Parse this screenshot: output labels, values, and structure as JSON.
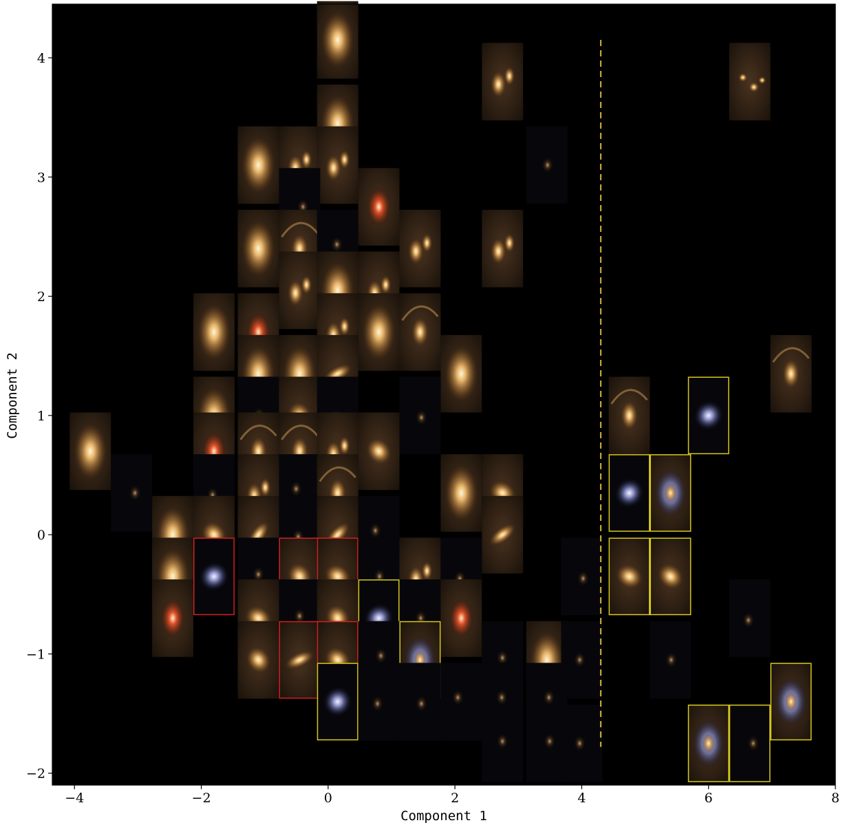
{
  "chart_data": {
    "type": "scatter",
    "xlabel": "Component 1",
    "ylabel": "Component 2",
    "xlim": [
      -4.35,
      8.0
    ],
    "ylim": [
      -2.1,
      4.45
    ],
    "xticks": [
      -4,
      -2,
      0,
      2,
      4,
      6,
      8
    ],
    "yticks": [
      -2,
      -1,
      0,
      1,
      2,
      3,
      4
    ],
    "xtick_labels": [
      "−4",
      "−2",
      "0",
      "2",
      "4",
      "6",
      "8"
    ],
    "ytick_labels": [
      "−2",
      "−1",
      "0",
      "1",
      "2",
      "3",
      "4"
    ],
    "grid": false,
    "background": "#000000",
    "cell_size": 0.65,
    "threshold_line": {
      "x": 4.3,
      "y_range": [
        -1.78,
        4.15
      ],
      "style": "dashed",
      "color": "#c8a53a"
    },
    "highlight_colors": {
      "red": "#d02020",
      "yellow": "#d8c81e",
      "none": ""
    },
    "thumbnails": [
      {
        "x": 0.15,
        "y": 4.15,
        "kind": "elliptical",
        "highlight": "none"
      },
      {
        "x": 2.75,
        "y": 3.8,
        "kind": "pair",
        "highlight": "none"
      },
      {
        "x": 6.65,
        "y": 3.8,
        "kind": "group",
        "highlight": "none"
      },
      {
        "x": 0.15,
        "y": 3.45,
        "kind": "elliptical",
        "highlight": "none"
      },
      {
        "x": -1.1,
        "y": 3.1,
        "kind": "elliptical",
        "highlight": "none"
      },
      {
        "x": -0.45,
        "y": 3.1,
        "kind": "pair",
        "highlight": "none"
      },
      {
        "x": 0.15,
        "y": 3.1,
        "kind": "pair",
        "highlight": "none"
      },
      {
        "x": 3.45,
        "y": 3.1,
        "kind": "faint",
        "highlight": "none"
      },
      {
        "x": -0.45,
        "y": 2.75,
        "kind": "faint",
        "highlight": "none"
      },
      {
        "x": 0.8,
        "y": 2.75,
        "kind": "red",
        "highlight": "none"
      },
      {
        "x": -1.1,
        "y": 2.4,
        "kind": "elliptical",
        "highlight": "none"
      },
      {
        "x": -0.45,
        "y": 2.4,
        "kind": "arc",
        "highlight": "none"
      },
      {
        "x": 0.15,
        "y": 2.4,
        "kind": "faint",
        "highlight": "none"
      },
      {
        "x": 1.45,
        "y": 2.4,
        "kind": "pair",
        "highlight": "none"
      },
      {
        "x": 2.75,
        "y": 2.4,
        "kind": "pair",
        "highlight": "none"
      },
      {
        "x": -0.45,
        "y": 2.05,
        "kind": "pair",
        "highlight": "none"
      },
      {
        "x": 0.15,
        "y": 2.05,
        "kind": "elliptical",
        "highlight": "none"
      },
      {
        "x": 0.8,
        "y": 2.05,
        "kind": "pair",
        "highlight": "none"
      },
      {
        "x": -1.8,
        "y": 1.7,
        "kind": "elliptical",
        "highlight": "none"
      },
      {
        "x": -1.1,
        "y": 1.7,
        "kind": "red",
        "highlight": "none"
      },
      {
        "x": 0.15,
        "y": 1.7,
        "kind": "pair",
        "highlight": "none"
      },
      {
        "x": 0.8,
        "y": 1.7,
        "kind": "elliptical",
        "highlight": "none"
      },
      {
        "x": 1.45,
        "y": 1.7,
        "kind": "arc",
        "highlight": "none"
      },
      {
        "x": -1.1,
        "y": 1.35,
        "kind": "elliptical",
        "highlight": "none"
      },
      {
        "x": -0.45,
        "y": 1.35,
        "kind": "elliptical",
        "highlight": "none"
      },
      {
        "x": 0.15,
        "y": 1.35,
        "kind": "edgeon",
        "highlight": "none"
      },
      {
        "x": 2.1,
        "y": 1.35,
        "kind": "elliptical",
        "highlight": "none"
      },
      {
        "x": 7.3,
        "y": 1.35,
        "kind": "arc",
        "highlight": "none"
      },
      {
        "x": -1.8,
        "y": 1.0,
        "kind": "elliptical",
        "highlight": "none"
      },
      {
        "x": -1.1,
        "y": 1.0,
        "kind": "faint",
        "highlight": "none"
      },
      {
        "x": -0.45,
        "y": 1.0,
        "kind": "disk",
        "highlight": "none"
      },
      {
        "x": 0.15,
        "y": 1.0,
        "kind": "faint",
        "highlight": "none"
      },
      {
        "x": 1.45,
        "y": 1.0,
        "kind": "faint",
        "highlight": "none"
      },
      {
        "x": 4.75,
        "y": 1.0,
        "kind": "arc",
        "highlight": "none"
      },
      {
        "x": 6.0,
        "y": 1.0,
        "kind": "bluespiral",
        "highlight": "yellow"
      },
      {
        "x": -3.75,
        "y": 0.7,
        "kind": "elliptical",
        "highlight": "none"
      },
      {
        "x": -1.8,
        "y": 0.7,
        "kind": "red",
        "highlight": "none"
      },
      {
        "x": -1.1,
        "y": 0.7,
        "kind": "arc",
        "highlight": "none"
      },
      {
        "x": -0.45,
        "y": 0.7,
        "kind": "arc",
        "highlight": "none"
      },
      {
        "x": 0.15,
        "y": 0.7,
        "kind": "pair",
        "highlight": "none"
      },
      {
        "x": 0.8,
        "y": 0.7,
        "kind": "disk",
        "highlight": "none"
      },
      {
        "x": -3.1,
        "y": 0.35,
        "kind": "faint",
        "highlight": "none"
      },
      {
        "x": -1.8,
        "y": 0.35,
        "kind": "faint",
        "highlight": "none"
      },
      {
        "x": -1.1,
        "y": 0.35,
        "kind": "pair",
        "highlight": "none"
      },
      {
        "x": -0.45,
        "y": 0.35,
        "kind": "faint",
        "highlight": "none"
      },
      {
        "x": 0.15,
        "y": 0.35,
        "kind": "arc",
        "highlight": "none"
      },
      {
        "x": 2.1,
        "y": 0.35,
        "kind": "elliptical",
        "highlight": "none"
      },
      {
        "x": 2.75,
        "y": 0.35,
        "kind": "disk",
        "highlight": "none"
      },
      {
        "x": 4.75,
        "y": 0.35,
        "kind": "bluespiral",
        "highlight": "yellow"
      },
      {
        "x": 5.4,
        "y": 0.35,
        "kind": "spiral",
        "highlight": "yellow"
      },
      {
        "x": -2.45,
        "y": 0.0,
        "kind": "elliptical",
        "highlight": "none"
      },
      {
        "x": -1.8,
        "y": 0.0,
        "kind": "disk",
        "highlight": "none"
      },
      {
        "x": -1.1,
        "y": 0.0,
        "kind": "edgeon",
        "highlight": "none"
      },
      {
        "x": -0.45,
        "y": 0.0,
        "kind": "faint",
        "highlight": "none"
      },
      {
        "x": 0.15,
        "y": 0.0,
        "kind": "edgeon",
        "highlight": "none"
      },
      {
        "x": 0.8,
        "y": 0.0,
        "kind": "faint",
        "highlight": "none"
      },
      {
        "x": 2.75,
        "y": 0.0,
        "kind": "edgeon",
        "highlight": "none"
      },
      {
        "x": -2.45,
        "y": -0.35,
        "kind": "elliptical",
        "highlight": "none"
      },
      {
        "x": -1.8,
        "y": -0.35,
        "kind": "bluespiral",
        "highlight": "red"
      },
      {
        "x": -1.1,
        "y": -0.35,
        "kind": "faint",
        "highlight": "none"
      },
      {
        "x": -0.45,
        "y": -0.35,
        "kind": "disk",
        "highlight": "red"
      },
      {
        "x": 0.15,
        "y": -0.35,
        "kind": "disk",
        "highlight": "red"
      },
      {
        "x": 0.8,
        "y": -0.35,
        "kind": "faint",
        "highlight": "none"
      },
      {
        "x": 1.45,
        "y": -0.35,
        "kind": "pair",
        "highlight": "none"
      },
      {
        "x": 2.1,
        "y": -0.35,
        "kind": "faint",
        "highlight": "none"
      },
      {
        "x": 4.0,
        "y": -0.35,
        "kind": "faint",
        "highlight": "none"
      },
      {
        "x": 4.75,
        "y": -0.35,
        "kind": "disk",
        "highlight": "yellow"
      },
      {
        "x": 5.4,
        "y": -0.35,
        "kind": "disk",
        "highlight": "yellow"
      },
      {
        "x": -2.45,
        "y": -0.7,
        "kind": "red",
        "highlight": "none"
      },
      {
        "x": -1.1,
        "y": -0.7,
        "kind": "disk",
        "highlight": "none"
      },
      {
        "x": -0.45,
        "y": -0.7,
        "kind": "faint",
        "highlight": "none"
      },
      {
        "x": 0.15,
        "y": -0.7,
        "kind": "disk",
        "highlight": "none"
      },
      {
        "x": 0.8,
        "y": -0.7,
        "kind": "bluespiral",
        "highlight": "yellow"
      },
      {
        "x": 1.45,
        "y": -0.7,
        "kind": "faint",
        "highlight": "none"
      },
      {
        "x": 2.1,
        "y": -0.7,
        "kind": "red",
        "highlight": "none"
      },
      {
        "x": 6.65,
        "y": -0.7,
        "kind": "faint",
        "highlight": "none"
      },
      {
        "x": -1.1,
        "y": -1.05,
        "kind": "disk",
        "highlight": "none"
      },
      {
        "x": -0.45,
        "y": -1.05,
        "kind": "edgeon",
        "highlight": "red"
      },
      {
        "x": 0.15,
        "y": -1.05,
        "kind": "disk",
        "highlight": "red"
      },
      {
        "x": 0.8,
        "y": -1.05,
        "kind": "faint",
        "highlight": "none"
      },
      {
        "x": 1.45,
        "y": -1.05,
        "kind": "spiral",
        "highlight": "yellow"
      },
      {
        "x": 2.75,
        "y": -1.05,
        "kind": "faint",
        "highlight": "none"
      },
      {
        "x": 3.45,
        "y": -1.05,
        "kind": "elliptical",
        "highlight": "none"
      },
      {
        "x": 4.0,
        "y": -1.05,
        "kind": "faint",
        "highlight": "none"
      },
      {
        "x": 5.4,
        "y": -1.05,
        "kind": "faint",
        "highlight": "none"
      },
      {
        "x": 0.15,
        "y": -1.4,
        "kind": "bluespiral",
        "highlight": "yellow"
      },
      {
        "x": 0.8,
        "y": -1.4,
        "kind": "faint",
        "highlight": "none"
      },
      {
        "x": 1.45,
        "y": -1.4,
        "kind": "faint",
        "highlight": "none"
      },
      {
        "x": 2.1,
        "y": -1.4,
        "kind": "faint",
        "highlight": "none"
      },
      {
        "x": 2.75,
        "y": -1.4,
        "kind": "faint",
        "highlight": "none"
      },
      {
        "x": 3.45,
        "y": -1.4,
        "kind": "faint",
        "highlight": "none"
      },
      {
        "x": 7.3,
        "y": -1.4,
        "kind": "spiral",
        "highlight": "yellow"
      },
      {
        "x": 2.75,
        "y": -1.75,
        "kind": "faint",
        "highlight": "none"
      },
      {
        "x": 3.45,
        "y": -1.75,
        "kind": "faint",
        "highlight": "none"
      },
      {
        "x": 4.0,
        "y": -1.75,
        "kind": "faint",
        "highlight": "none"
      },
      {
        "x": 6.0,
        "y": -1.75,
        "kind": "spiral",
        "highlight": "yellow"
      },
      {
        "x": 6.65,
        "y": -1.75,
        "kind": "faint",
        "highlight": "yellow"
      }
    ]
  }
}
